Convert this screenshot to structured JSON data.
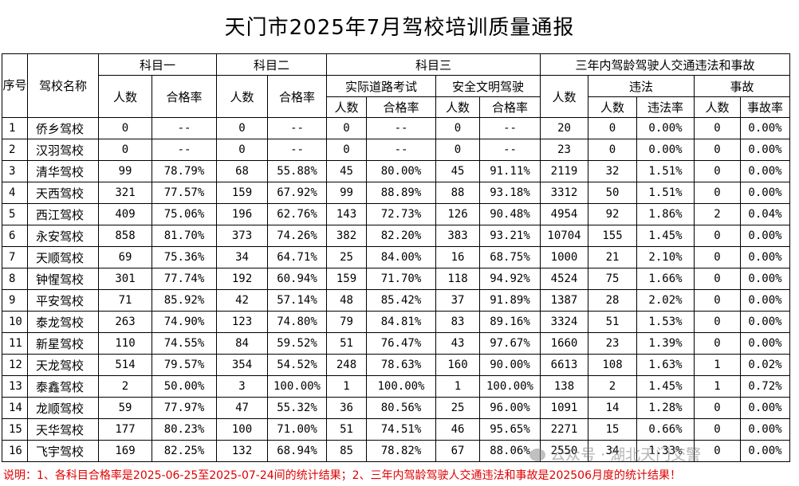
{
  "title": "天门市2025年7月驾校培训质量通报",
  "headers": {
    "seq": "序号",
    "school": "驾校名称",
    "subject1": "科目一",
    "subject2": "科目二",
    "subject3": "科目三",
    "road_test": "实际道路考试",
    "safe_driving": "安全文明驾驶",
    "three_year": "三年内驾龄驾驶人交通违法和事故",
    "violation": "违法",
    "accident": "事故",
    "count": "人数",
    "pass_rate": "合格率",
    "violation_rate": "违法率",
    "accident_rate": "事故率"
  },
  "rows": [
    [
      "1",
      "侨乡驾校",
      "0",
      "--",
      "0",
      "--",
      "0",
      "--",
      "0",
      "--",
      "20",
      "0",
      "0.00%",
      "0",
      "0.00%"
    ],
    [
      "2",
      "汉羽驾校",
      "0",
      "--",
      "0",
      "--",
      "0",
      "--",
      "0",
      "--",
      "23",
      "0",
      "0.00%",
      "0",
      "0.00%"
    ],
    [
      "3",
      "清华驾校",
      "99",
      "78.79%",
      "68",
      "55.88%",
      "45",
      "80.00%",
      "45",
      "91.11%",
      "2119",
      "32",
      "1.51%",
      "0",
      "0.00%"
    ],
    [
      "4",
      "天西驾校",
      "321",
      "77.57%",
      "159",
      "67.92%",
      "99",
      "88.89%",
      "88",
      "93.18%",
      "3312",
      "50",
      "1.51%",
      "0",
      "0.00%"
    ],
    [
      "5",
      "西江驾校",
      "409",
      "75.06%",
      "196",
      "62.76%",
      "143",
      "72.73%",
      "126",
      "90.48%",
      "4954",
      "92",
      "1.86%",
      "2",
      "0.04%"
    ],
    [
      "6",
      "永安驾校",
      "858",
      "81.70%",
      "373",
      "74.26%",
      "382",
      "82.20%",
      "383",
      "93.21%",
      "10704",
      "155",
      "1.45%",
      "0",
      "0.00%"
    ],
    [
      "7",
      "天顺驾校",
      "69",
      "75.36%",
      "34",
      "64.71%",
      "25",
      "84.00%",
      "16",
      "68.75%",
      "1000",
      "21",
      "2.10%",
      "0",
      "0.00%"
    ],
    [
      "8",
      "钟惺驾校",
      "301",
      "77.74%",
      "192",
      "60.94%",
      "159",
      "71.70%",
      "118",
      "94.92%",
      "4524",
      "75",
      "1.66%",
      "0",
      "0.00%"
    ],
    [
      "9",
      "平安驾校",
      "71",
      "85.92%",
      "42",
      "57.14%",
      "48",
      "85.42%",
      "37",
      "91.89%",
      "1387",
      "28",
      "2.02%",
      "0",
      "0.00%"
    ],
    [
      "10",
      "泰龙驾校",
      "263",
      "74.90%",
      "123",
      "74.80%",
      "79",
      "84.81%",
      "83",
      "89.16%",
      "3324",
      "51",
      "1.53%",
      "0",
      "0.00%"
    ],
    [
      "11",
      "新星驾校",
      "110",
      "74.55%",
      "84",
      "59.52%",
      "51",
      "76.47%",
      "43",
      "97.67%",
      "1660",
      "23",
      "1.39%",
      "0",
      "0.00%"
    ],
    [
      "12",
      "天龙驾校",
      "514",
      "79.57%",
      "354",
      "54.52%",
      "248",
      "78.63%",
      "160",
      "90.00%",
      "6613",
      "108",
      "1.63%",
      "1",
      "0.02%"
    ],
    [
      "13",
      "泰鑫驾校",
      "2",
      "50.00%",
      "3",
      "100.00%",
      "1",
      "100.00%",
      "1",
      "100.00%",
      "138",
      "2",
      "1.45%",
      "1",
      "0.72%"
    ],
    [
      "14",
      "龙顺驾校",
      "59",
      "77.97%",
      "47",
      "55.32%",
      "36",
      "80.56%",
      "25",
      "96.00%",
      "1091",
      "14",
      "1.28%",
      "0",
      "0.00%"
    ],
    [
      "15",
      "天华驾校",
      "177",
      "80.23%",
      "100",
      "71.00%",
      "51",
      "74.51%",
      "46",
      "95.65%",
      "2271",
      "15",
      "0.66%",
      "0",
      "0.00%"
    ],
    [
      "16",
      "飞宇驾校",
      "169",
      "82.25%",
      "132",
      "68.94%",
      "85",
      "78.82%",
      "67",
      "88.06%",
      "2550",
      "34",
      "1.33%",
      "0",
      "0.00%"
    ]
  ],
  "note": "说明：1、各科目合格率是2025-06-25至2025-07-24间的统计结果；2、三年内驾龄驾驶人交通违法和事故是202506月度的统计结果！",
  "watermark": "公众号 · 湖北天门交警"
}
